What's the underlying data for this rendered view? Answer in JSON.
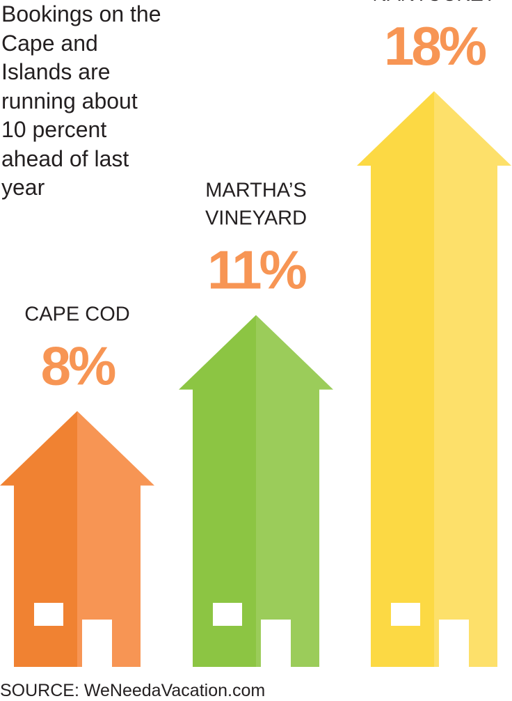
{
  "headline": "Bookings on the Cape and Islands are running about 10 percent ahead of last year",
  "source": "SOURCE: WeNeedaVacation.com",
  "colors": {
    "cape_cod_dark": "#f08232",
    "cape_cod_light": "#f79554",
    "marthas_vineyard_dark": "#8cc543",
    "marthas_vineyard_light": "#9bcc5a",
    "nantucket_dark": "#fcd944",
    "nantucket_light": "#fde06a",
    "percent_text": "#f79554"
  },
  "chart_data": {
    "type": "bar",
    "mark": "house",
    "title": "Bookings on the Cape and Islands are running about 10 percent ahead of last year",
    "unit": "%",
    "categories": [
      "CAPE COD",
      "MARTHA’S VINEYARD",
      "NANTUCKET"
    ],
    "category_lines": [
      [
        "CAPE COD"
      ],
      [
        "MARTHA’S",
        "VINEYARD"
      ],
      [
        "NANTUCKET"
      ]
    ],
    "values": [
      8,
      11,
      18
    ],
    "value_labels": [
      "8%",
      "11%",
      "18%"
    ],
    "grid": false,
    "legend": "none"
  }
}
